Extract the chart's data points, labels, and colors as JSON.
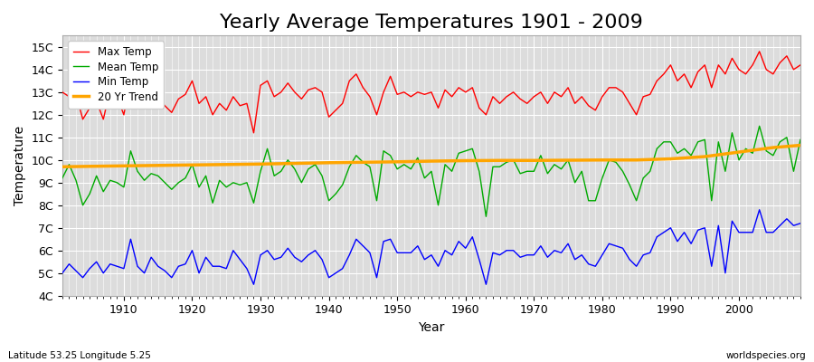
{
  "title": "Yearly Average Temperatures 1901 - 2009",
  "xlabel": "Year",
  "ylabel": "Temperature",
  "lat_lon_label": "Latitude 53.25 Longitude 5.25",
  "source_label": "worldspecies.org",
  "years": [
    1901,
    1902,
    1903,
    1904,
    1905,
    1906,
    1907,
    1908,
    1909,
    1910,
    1911,
    1912,
    1913,
    1914,
    1915,
    1916,
    1917,
    1918,
    1919,
    1920,
    1921,
    1922,
    1923,
    1924,
    1925,
    1926,
    1927,
    1928,
    1929,
    1930,
    1931,
    1932,
    1933,
    1934,
    1935,
    1936,
    1937,
    1938,
    1939,
    1940,
    1941,
    1942,
    1943,
    1944,
    1945,
    1946,
    1947,
    1948,
    1949,
    1950,
    1951,
    1952,
    1953,
    1954,
    1955,
    1956,
    1957,
    1958,
    1959,
    1960,
    1961,
    1962,
    1963,
    1964,
    1965,
    1966,
    1967,
    1968,
    1969,
    1970,
    1971,
    1972,
    1973,
    1974,
    1975,
    1976,
    1977,
    1978,
    1979,
    1980,
    1981,
    1982,
    1983,
    1984,
    1985,
    1986,
    1987,
    1988,
    1989,
    1990,
    1991,
    1992,
    1993,
    1994,
    1995,
    1996,
    1997,
    1998,
    1999,
    2000,
    2001,
    2002,
    2003,
    2004,
    2005,
    2006,
    2007,
    2008,
    2009
  ],
  "max_temp": [
    13.0,
    12.8,
    12.9,
    11.8,
    12.3,
    12.6,
    11.8,
    13.1,
    12.8,
    12.0,
    13.6,
    12.7,
    12.5,
    13.3,
    12.8,
    12.4,
    12.1,
    12.7,
    12.9,
    13.5,
    12.5,
    12.8,
    12.0,
    12.5,
    12.2,
    12.8,
    12.4,
    12.5,
    11.2,
    13.3,
    13.5,
    12.8,
    13.0,
    13.4,
    13.0,
    12.7,
    13.1,
    13.2,
    13.0,
    11.9,
    12.2,
    12.5,
    13.5,
    13.8,
    13.2,
    12.8,
    12.0,
    13.0,
    13.7,
    12.9,
    13.0,
    12.8,
    13.0,
    12.9,
    13.0,
    12.3,
    13.1,
    12.8,
    13.2,
    13.0,
    13.2,
    12.3,
    12.0,
    12.8,
    12.5,
    12.8,
    13.0,
    12.7,
    12.5,
    12.8,
    13.0,
    12.5,
    13.0,
    12.8,
    13.2,
    12.5,
    12.8,
    12.4,
    12.2,
    12.8,
    13.2,
    13.2,
    13.0,
    12.5,
    12.0,
    12.8,
    12.9,
    13.5,
    13.8,
    14.2,
    13.5,
    13.8,
    13.2,
    13.9,
    14.2,
    13.2,
    14.2,
    13.8,
    14.5,
    14.0,
    13.8,
    14.2,
    14.8,
    14.0,
    13.8,
    14.3,
    14.6,
    14.0,
    14.2
  ],
  "mean_temp": [
    9.2,
    9.8,
    9.1,
    8.0,
    8.5,
    9.3,
    8.6,
    9.1,
    9.0,
    8.8,
    10.4,
    9.5,
    9.1,
    9.4,
    9.3,
    9.0,
    8.7,
    9.0,
    9.2,
    9.8,
    8.8,
    9.3,
    8.1,
    9.1,
    8.8,
    9.0,
    8.9,
    9.0,
    8.1,
    9.5,
    10.5,
    9.3,
    9.5,
    10.0,
    9.6,
    9.0,
    9.6,
    9.8,
    9.3,
    8.2,
    8.5,
    8.9,
    9.7,
    10.2,
    9.9,
    9.7,
    8.2,
    10.4,
    10.2,
    9.6,
    9.8,
    9.6,
    10.1,
    9.2,
    9.5,
    8.0,
    9.8,
    9.5,
    10.3,
    10.4,
    10.5,
    9.5,
    7.5,
    9.7,
    9.7,
    9.9,
    10.0,
    9.4,
    9.5,
    9.5,
    10.2,
    9.4,
    9.8,
    9.6,
    10.0,
    9.0,
    9.5,
    8.2,
    8.2,
    9.2,
    10.0,
    9.9,
    9.5,
    8.9,
    8.2,
    9.2,
    9.5,
    10.5,
    10.8,
    10.8,
    10.3,
    10.5,
    10.2,
    10.8,
    10.9,
    8.2,
    10.8,
    9.5,
    11.2,
    10.0,
    10.5,
    10.3,
    11.5,
    10.4,
    10.2,
    10.8,
    11.0,
    9.5,
    10.9
  ],
  "min_temp": [
    5.0,
    5.4,
    5.1,
    4.8,
    5.2,
    5.5,
    5.0,
    5.4,
    5.3,
    5.2,
    6.5,
    5.3,
    5.0,
    5.7,
    5.3,
    5.1,
    4.8,
    5.3,
    5.4,
    6.0,
    5.0,
    5.7,
    5.3,
    5.3,
    5.2,
    6.0,
    5.6,
    5.2,
    4.5,
    5.8,
    6.0,
    5.6,
    5.7,
    6.1,
    5.7,
    5.5,
    5.8,
    6.0,
    5.6,
    4.8,
    5.0,
    5.2,
    5.8,
    6.5,
    6.2,
    5.9,
    4.8,
    6.4,
    6.5,
    5.9,
    5.9,
    5.9,
    6.2,
    5.6,
    5.8,
    5.3,
    6.0,
    5.8,
    6.4,
    6.1,
    6.6,
    5.6,
    4.5,
    5.9,
    5.8,
    6.0,
    6.0,
    5.7,
    5.8,
    5.8,
    6.2,
    5.7,
    6.0,
    5.9,
    6.3,
    5.6,
    5.8,
    5.4,
    5.3,
    5.8,
    6.3,
    6.2,
    6.1,
    5.6,
    5.3,
    5.8,
    5.9,
    6.6,
    6.8,
    7.0,
    6.4,
    6.8,
    6.3,
    6.9,
    7.0,
    5.3,
    7.1,
    5.0,
    7.3,
    6.8,
    6.8,
    6.8,
    7.8,
    6.8,
    6.8,
    7.1,
    7.4,
    7.1,
    7.2
  ],
  "trend_years": [
    1901,
    1905,
    1910,
    1915,
    1920,
    1925,
    1930,
    1935,
    1940,
    1945,
    1950,
    1955,
    1960,
    1965,
    1970,
    1975,
    1980,
    1985,
    1990,
    1995,
    2000,
    2005,
    2009
  ],
  "trend_values": [
    9.7,
    9.72,
    9.74,
    9.76,
    9.78,
    9.8,
    9.82,
    9.85,
    9.88,
    9.9,
    9.92,
    9.95,
    9.97,
    9.98,
    9.98,
    9.99,
    10.0,
    10.0,
    10.05,
    10.15,
    10.35,
    10.55,
    10.65
  ],
  "max_color": "#ff0000",
  "mean_color": "#00aa00",
  "min_color": "#0000ff",
  "trend_color": "#ffa500",
  "plot_bg_color": "#dcdcdc",
  "ylim": [
    4,
    15.5
  ],
  "yticks": [
    4,
    5,
    6,
    7,
    8,
    9,
    10,
    11,
    12,
    13,
    14,
    15
  ],
  "ytick_labels": [
    "4C",
    "5C",
    "6C",
    "7C",
    "8C",
    "9C",
    "10C",
    "11C",
    "12C",
    "13C",
    "14C",
    "15C"
  ],
  "xlim": [
    1901,
    2009
  ],
  "title_fontsize": 16,
  "axis_fontsize": 10,
  "tick_fontsize": 9,
  "linewidth": 1.0,
  "trend_linewidth": 2.5
}
